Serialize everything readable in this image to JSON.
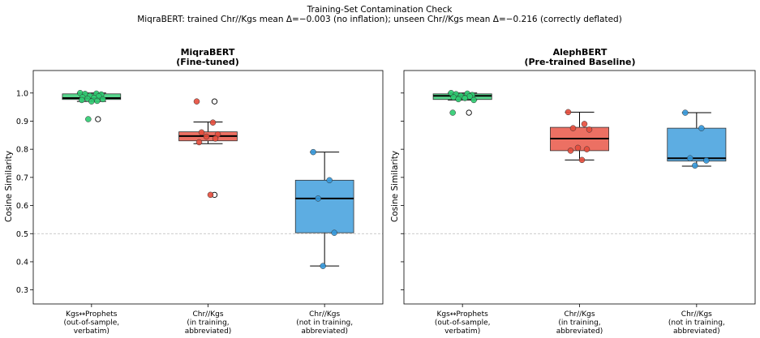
{
  "suptitle_lines": [
    "Training-Set Contamination Check",
    "MiqraBERT: trained Chr//Kgs mean Δ=−0.003 (no inflation); unseen Chr//Kgs mean Δ=−0.216 (correctly deflated)"
  ],
  "colors": {
    "green": "#58d68d",
    "red": "#ec7063",
    "blue": "#5dade2",
    "green_dot": "#2ecc71",
    "red_dot": "#e74c3c",
    "blue_dot": "#3498db",
    "reference_line": "#bbbbbb"
  },
  "chart_data": [
    {
      "type": "box",
      "title_lines": [
        "MiqraBERT",
        "(Fine-tuned)"
      ],
      "xlabel": "",
      "ylabel": "Cosine Similarity",
      "ylim": [
        0.25,
        1.08
      ],
      "yticks": [
        0.3,
        0.4,
        0.5,
        0.6,
        0.7,
        0.8,
        0.9,
        1.0
      ],
      "ytick_labels": [
        "0.3",
        "0.4",
        "0.5",
        "0.6",
        "0.7",
        "0.8",
        "0.9",
        "1.0"
      ],
      "reference_line": 0.5,
      "categories": [
        [
          "Kgs↔Prophets",
          "(out-of-sample,",
          "verbatim)"
        ],
        [
          "Chr//Kgs",
          "(in training,",
          "abbreviated)"
        ],
        [
          "Chr//Kgs",
          "(not in training,",
          "abbreviated)"
        ]
      ],
      "boxes": [
        {
          "color": "green",
          "dot_color": "green_dot",
          "whisker_low": 0.97,
          "q1": 0.977,
          "median": 0.982,
          "q3": 0.997,
          "whisker_high": 1.0,
          "outliers": [
            0.907
          ],
          "points": [
            1.0,
            0.998,
            0.997,
            0.995,
            0.99,
            0.988,
            0.985,
            0.983,
            0.98,
            0.978,
            0.975,
            0.972,
            0.97,
            0.907
          ]
        },
        {
          "color": "red",
          "dot_color": "red_dot",
          "whisker_low": 0.82,
          "q1": 0.83,
          "median": 0.847,
          "q3": 0.862,
          "whisker_high": 0.897,
          "outliers": [
            0.97,
            0.638
          ],
          "points": [
            0.97,
            0.895,
            0.86,
            0.853,
            0.845,
            0.838,
            0.825,
            0.638
          ]
        },
        {
          "color": "blue",
          "dot_color": "blue_dot",
          "whisker_low": 0.385,
          "q1": 0.503,
          "median": 0.625,
          "q3": 0.69,
          "whisker_high": 0.79,
          "outliers": [],
          "points": [
            0.79,
            0.69,
            0.625,
            0.503,
            0.385
          ]
        }
      ]
    },
    {
      "type": "box",
      "title_lines": [
        "AlephBERT",
        "(Pre-trained Baseline)"
      ],
      "xlabel": "",
      "ylabel": "Cosine Similarity",
      "ylim": [
        0.25,
        1.08
      ],
      "yticks": [
        0.3,
        0.4,
        0.5,
        0.6,
        0.7,
        0.8,
        0.9,
        1.0
      ],
      "ytick_labels": [
        "",
        "",
        "",
        "",
        "",
        "",
        "",
        ""
      ],
      "reference_line": 0.5,
      "categories": [
        [
          "Kgs↔Prophets",
          "(out-of-sample,",
          "verbatim)"
        ],
        [
          "Chr//Kgs",
          "(in training,",
          "abbreviated)"
        ],
        [
          "Chr//Kgs",
          "(not in training,",
          "abbreviated)"
        ]
      ],
      "boxes": [
        {
          "color": "green",
          "dot_color": "green_dot",
          "whisker_low": 0.975,
          "q1": 0.977,
          "median": 0.99,
          "q3": 0.997,
          "whisker_high": 1.0,
          "outliers": [
            0.93
          ],
          "points": [
            1.0,
            0.998,
            0.996,
            0.993,
            0.99,
            0.988,
            0.985,
            0.982,
            0.978,
            0.975,
            0.93
          ]
        },
        {
          "color": "red",
          "dot_color": "red_dot",
          "whisker_low": 0.762,
          "q1": 0.795,
          "median": 0.838,
          "q3": 0.878,
          "whisker_high": 0.932,
          "outliers": [],
          "points": [
            0.932,
            0.89,
            0.875,
            0.87,
            0.805,
            0.8,
            0.795,
            0.762
          ]
        },
        {
          "color": "blue",
          "dot_color": "blue_dot",
          "whisker_low": 0.74,
          "q1": 0.758,
          "median": 0.768,
          "q3": 0.875,
          "whisker_high": 0.93,
          "outliers": [],
          "points": [
            0.93,
            0.875,
            0.768,
            0.76,
            0.742
          ]
        }
      ]
    }
  ]
}
